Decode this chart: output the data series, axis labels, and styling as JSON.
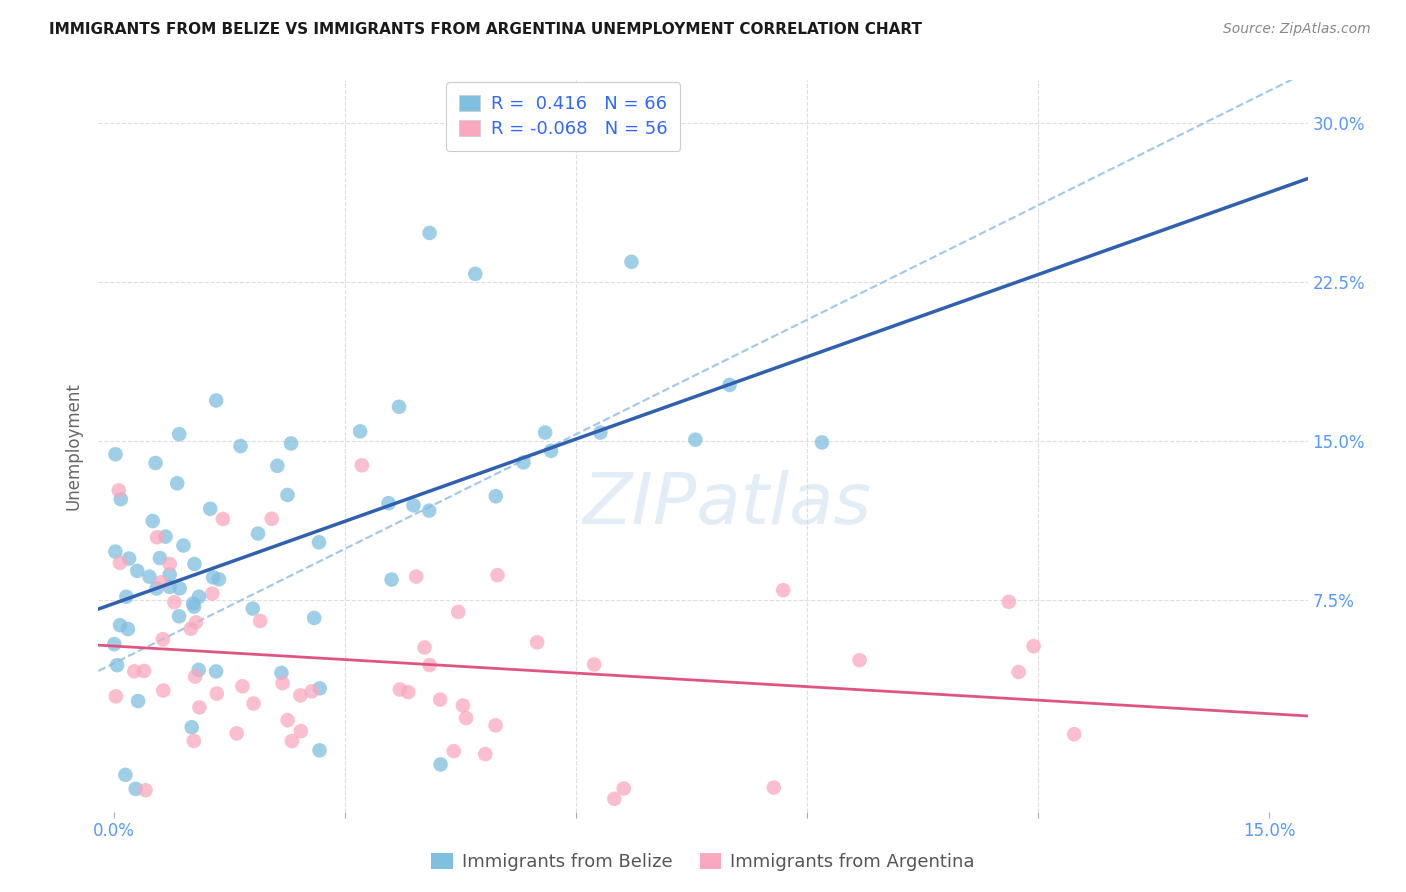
{
  "title": "IMMIGRANTS FROM BELIZE VS IMMIGRANTS FROM ARGENTINA UNEMPLOYMENT CORRELATION CHART",
  "source": "Source: ZipAtlas.com",
  "ylabel": "Unemployment",
  "xlim": [
    -0.002,
    0.155
  ],
  "ylim": [
    -0.025,
    0.32
  ],
  "xticks": [
    0.0,
    0.03,
    0.06,
    0.09,
    0.12,
    0.15
  ],
  "xtick_labels": [
    "0.0%",
    "",
    "",
    "",
    "",
    "15.0%"
  ],
  "ytick_positions": [
    0.075,
    0.15,
    0.225,
    0.3
  ],
  "ytick_labels": [
    "7.5%",
    "15.0%",
    "22.5%",
    "30.0%"
  ],
  "belize_color": "#7fbfdf",
  "argentina_color": "#f9a8c0",
  "belize_line_color": "#3060b0",
  "argentina_line_color": "#e05580",
  "dashed_line_color": "#a0c8e8",
  "belize_R": 0.416,
  "belize_N": 66,
  "argentina_R": -0.068,
  "argentina_N": 56,
  "watermark": "ZIPatlas",
  "background_color": "#ffffff",
  "tick_color": "#5599ff",
  "legend_color": "#3366ff",
  "grid_color": "#dddddd",
  "title_fontsize": 11,
  "source_fontsize": 10,
  "tick_fontsize": 12,
  "ylabel_fontsize": 12,
  "legend_fontsize": 13
}
